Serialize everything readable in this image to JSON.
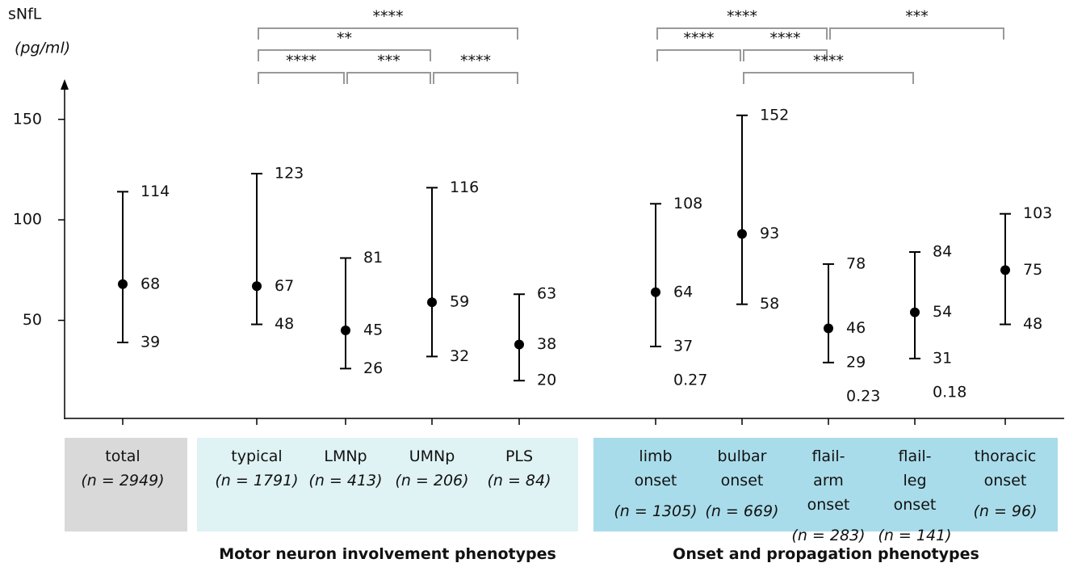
{
  "chart_data": {
    "type": "errorbar",
    "y_label": "sNfL",
    "y_unit": "(pg/ml)",
    "categories": [
      "total",
      "typical",
      "LMNp",
      "UMNp",
      "PLS",
      "limb onset",
      "bulbar onset",
      "flail-arm onset",
      "flail-leg onset",
      "thoracic onset"
    ],
    "n_labels": [
      "(n = 2949)",
      "(n = 1791)",
      "(n = 413)",
      "(n = 206)",
      "(n = 84)",
      "(n = 1305)",
      "(n = 669)",
      "(n = 283)",
      "(n = 141)",
      "(n = 96)"
    ],
    "values": [
      68,
      67,
      45,
      59,
      38,
      64,
      93,
      46,
      54,
      75
    ],
    "lower": [
      39,
      48,
      26,
      32,
      20,
      37,
      58,
      29,
      31,
      48
    ],
    "upper": [
      114,
      123,
      81,
      116,
      63,
      108,
      152,
      78,
      84,
      103
    ],
    "annotations": [
      null,
      null,
      null,
      null,
      null,
      "0.27",
      null,
      "0.23",
      "0.18",
      null
    ],
    "color": "#000000",
    "ylim": [
      0,
      170
    ],
    "yticks": [
      50,
      100,
      150
    ],
    "groups": [
      {
        "label": "Motor neuron involvement phenotypes",
        "members": [
          "typical",
          "LMNp",
          "UMNp",
          "PLS"
        ]
      },
      {
        "label": "Onset and propagation phenotypes",
        "members": [
          "limb onset",
          "bulbar onset",
          "flail-arm onset",
          "flail-leg onset",
          "thoracic onset"
        ]
      }
    ],
    "brackets": [
      {
        "from": "typical",
        "to": "LMNp",
        "label": "****"
      },
      {
        "from": "LMNp",
        "to": "UMNp",
        "label": "***"
      },
      {
        "from": "UMNp",
        "to": "PLS",
        "label": "****"
      },
      {
        "from": "typical",
        "to": "UMNp",
        "label": "**"
      },
      {
        "from": "typical",
        "to": "PLS",
        "label": "****"
      },
      {
        "from": "limb onset",
        "to": "bulbar onset",
        "label": "****"
      },
      {
        "from": "bulbar onset",
        "to": "flail-arm onset",
        "label": "****"
      },
      {
        "from": "bulbar onset",
        "to": "flail-leg onset",
        "label": "****"
      },
      {
        "from": "limb onset",
        "to": "flail-arm onset",
        "label": "****"
      },
      {
        "from": "flail-arm onset",
        "to": "thoracic onset",
        "label": "***"
      }
    ]
  }
}
